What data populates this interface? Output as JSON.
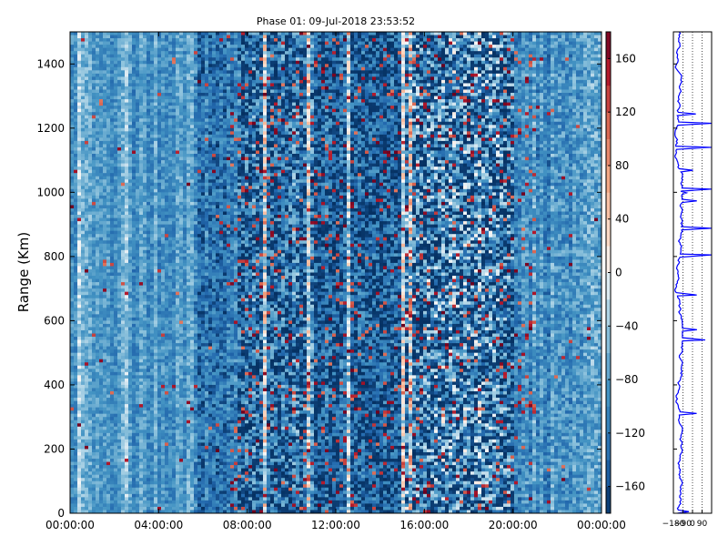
{
  "chart_data": [
    {
      "type": "heatmap",
      "title": "Phase 01: 09-Jul-2018 23:53:52",
      "xlabel": "",
      "ylabel": "Range (Km)",
      "xlim": [
        "00:00:00",
        "24:00:00"
      ],
      "ylim": [
        0,
        1500
      ],
      "x_ticks": [
        "00:00:00",
        "04:00:00",
        "08:00:00",
        "12:00:00",
        "16:00:00",
        "20:00:00",
        "00:00:00"
      ],
      "y_ticks": [
        0,
        200,
        400,
        600,
        800,
        1000,
        1200,
        1400
      ],
      "colorbar": {
        "colormap": "RdBu_r",
        "range": [
          -180,
          180
        ],
        "ticks": [
          -160,
          -120,
          -80,
          -40,
          0,
          40,
          80,
          120,
          160
        ],
        "colors": {
          "min": "#0b2d5c",
          "low": "#2166ac",
          "mid_low": "#6ea8d4",
          "near_zero": "#f7f7f7",
          "mid_high": "#f4a582",
          "high": "#b2182b",
          "max": "#5a0010"
        }
      },
      "grid": false
    },
    {
      "type": "line",
      "xlim": [
        -180,
        180
      ],
      "ylim": [
        0,
        1500
      ],
      "x_ticks": [
        "−180",
        "−90",
        "0",
        "90"
      ],
      "line_color": "#0000ff",
      "grid": "vertical dotted"
    }
  ]
}
